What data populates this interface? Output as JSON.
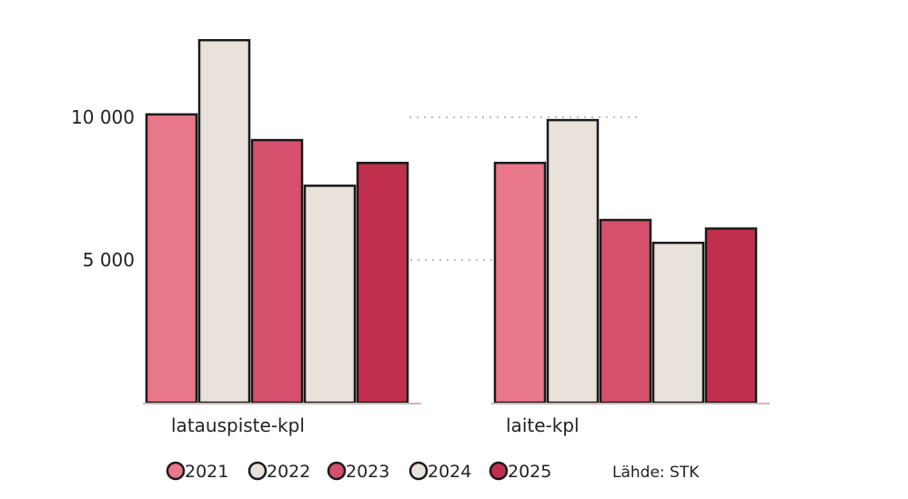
{
  "chart_data": {
    "type": "bar",
    "categories": [
      "latauspiste-kpl",
      "laite-kpl"
    ],
    "series": [
      {
        "name": "2021",
        "values": [
          10100,
          8400
        ],
        "color": "#e8788a"
      },
      {
        "name": "2022",
        "values": [
          12700,
          9900
        ],
        "color": "#e8e2db"
      },
      {
        "name": "2023",
        "values": [
          9200,
          6400
        ],
        "color": "#d4506c"
      },
      {
        "name": "2024",
        "values": [
          7600,
          5600
        ],
        "color": "#e8e2db"
      },
      {
        "name": "2025",
        "values": [
          8400,
          6100
        ],
        "color": "#c0304e"
      }
    ],
    "yticks": [
      {
        "value": 5000,
        "label": "5 000"
      },
      {
        "value": 10000,
        "label": "10 000"
      }
    ],
    "ylim": [
      0,
      13500
    ],
    "grid": true,
    "legend": "bottom",
    "source": "Lähde: STK"
  }
}
